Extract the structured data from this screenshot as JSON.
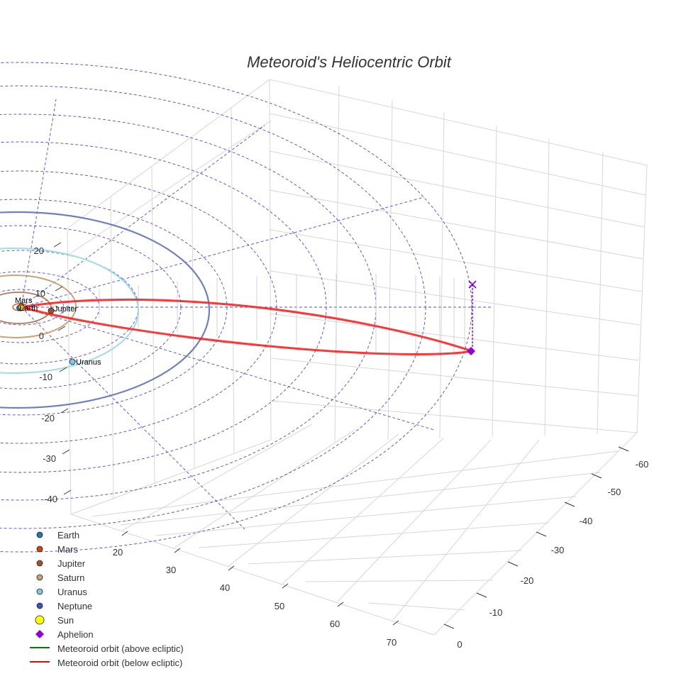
{
  "chart_data": {
    "type": "3d-line",
    "title": "Meteoroid's Heliocentric Orbit",
    "axes": {
      "x": {
        "ticks": [
          "20",
          "30",
          "40",
          "50",
          "60",
          "70"
        ]
      },
      "y": {
        "ticks": [
          "-60",
          "-50",
          "-40",
          "-30",
          "-20",
          "-10",
          "0"
        ]
      },
      "z": {
        "ticks": [
          "20",
          "10",
          "0",
          "-10",
          "-20",
          "-30",
          "-40"
        ]
      }
    },
    "planet_labels": [
      "Mars",
      "Earth",
      "Jupiter",
      "Uranus"
    ],
    "series": [
      {
        "name": "Earth",
        "color": "#1f77b4",
        "marker": "circle"
      },
      {
        "name": "Mars",
        "color": "#d8420e",
        "marker": "circle"
      },
      {
        "name": "Jupiter",
        "color": "#a0522d",
        "marker": "circle"
      },
      {
        "name": "Saturn",
        "color": "#c8a27a",
        "marker": "circle"
      },
      {
        "name": "Uranus",
        "color": "#7ec8e3",
        "marker": "circle"
      },
      {
        "name": "Neptune",
        "color": "#3f51b5",
        "marker": "circle"
      },
      {
        "name": "Sun",
        "color": "#ffff00",
        "marker": "circle"
      },
      {
        "name": "Aphelion",
        "color": "#9400d3",
        "marker": "diamond"
      },
      {
        "name": "Meteoroid orbit (above ecliptic)",
        "color": "#008000",
        "marker": "line"
      },
      {
        "name": "Meteoroid orbit (below ecliptic)",
        "color": "#ff0000",
        "marker": "line"
      }
    ]
  }
}
